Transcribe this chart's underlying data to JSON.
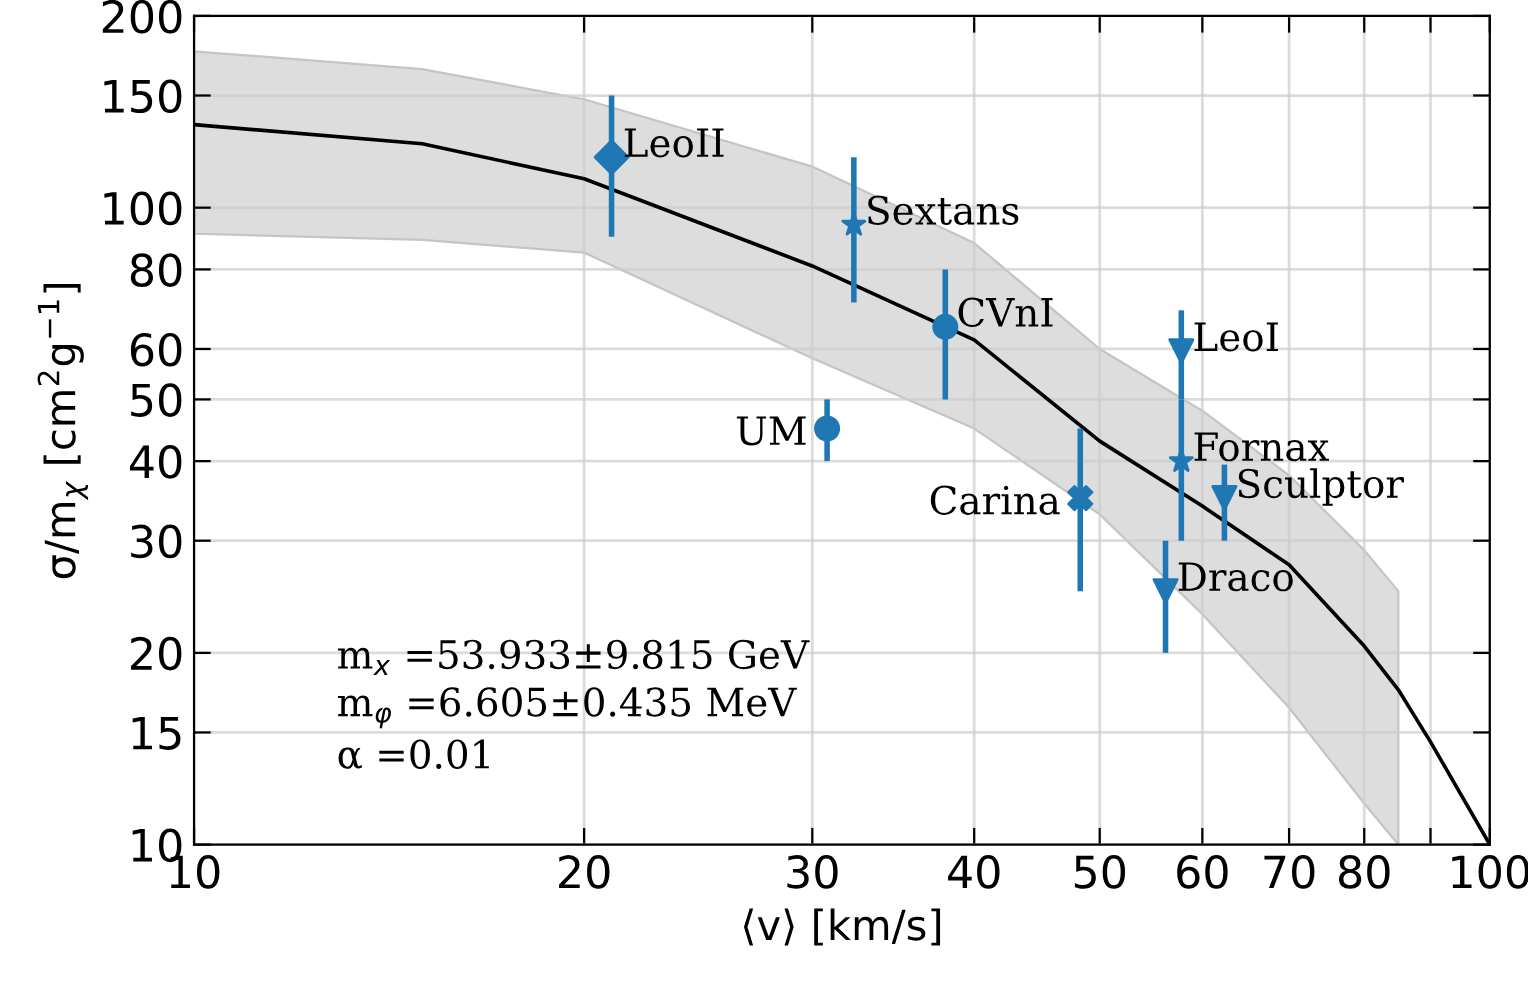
{
  "chart_data": {
    "type": "scatter",
    "log": "xy",
    "grid": true,
    "xlabel": "⟨v⟩ [km/s]",
    "ylabel": "σ/m$_{χ}$ [cm$^{2}$g$^{−1}$]",
    "xlim": [
      10,
      100
    ],
    "ylim": [
      10,
      200
    ],
    "xticks": [
      10,
      20,
      30,
      40,
      50,
      60,
      70,
      80,
      {
        "value": 90,
        "label": null
      },
      100
    ],
    "yticks": [
      10,
      15,
      20,
      30,
      40,
      50,
      60,
      80,
      100,
      150,
      200
    ],
    "series": [
      {
        "type": "line",
        "color": "#000000",
        "marker": "none",
        "line_style": "solid",
        "x": [
          10,
          15,
          20,
          30,
          40,
          50,
          60,
          70,
          80,
          85,
          90,
          100
        ],
        "values": [
          135,
          126,
          111,
          81,
          62,
          43,
          34,
          27.5,
          20.5,
          17.5,
          14.5,
          10
        ],
        "upper": [
          176,
          165,
          148,
          116,
          88,
          60,
          48,
          38,
          29,
          25,
          null,
          null
        ],
        "lower": [
          91,
          89,
          85,
          58,
          45,
          33,
          23,
          16.4,
          11.6,
          10,
          null,
          null
        ]
      },
      {
        "color": "#1f77b4",
        "marker": "diamond",
        "x": [
          21.0
        ],
        "values": [
          120
        ],
        "errors": [
          [
            90,
            150
          ]
        ]
      },
      {
        "color": "#1f77b4",
        "marker": "star",
        "x": [
          32.3
        ],
        "values": [
          94
        ],
        "errors": [
          [
            71,
            120
          ]
        ]
      },
      {
        "color": "#1f77b4",
        "marker": "circle",
        "x": [
          38.0
        ],
        "values": [
          65
        ],
        "errors": [
          [
            50,
            80
          ]
        ]
      },
      {
        "color": "#1f77b4",
        "marker": "circle",
        "x": [
          30.8
        ],
        "values": [
          45
        ],
        "errors": [
          [
            40,
            50
          ]
        ]
      },
      {
        "color": "#1f77b4",
        "marker": "cross",
        "x": [
          48.3
        ],
        "values": [
          35
        ],
        "errors": [
          [
            25,
            45
          ]
        ]
      },
      {
        "color": "#1f77b4",
        "marker": "triangle",
        "x": [
          57.8
        ],
        "values": [
          59.5
        ],
        "errors": [
          [
            50,
            69
          ]
        ]
      },
      {
        "color": "#1f77b4",
        "marker": "star",
        "x": [
          57.8
        ],
        "values": [
          40
        ],
        "errors": [
          [
            30,
            50
          ]
        ]
      },
      {
        "color": "#1f77b4",
        "marker": "triangle",
        "x": [
          62.4
        ],
        "values": [
          35
        ],
        "errors": [
          [
            30,
            39.5
          ]
        ]
      },
      {
        "color": "#1f77b4",
        "marker": "triangle",
        "x": [
          56.2
        ],
        "values": [
          25
        ],
        "errors": [
          [
            20,
            30
          ]
        ]
      }
    ],
    "annotations": [
      {
        "text": "LeoII",
        "x": 21.0,
        "y": 120
      },
      {
        "text": "Sextans",
        "x": 32.3,
        "y": 94
      },
      {
        "text": "CVnI",
        "x": 38.0,
        "y": 65
      },
      {
        "text": "UM",
        "x": 30.8,
        "y": 45
      },
      {
        "text": "Carina",
        "x": 48.3,
        "y": 35
      },
      {
        "text": "LeoI",
        "x": 57.8,
        "y": 59.5
      },
      {
        "text": "Fornax",
        "x": 57.8,
        "y": 40
      },
      {
        "text": "Sculptor",
        "x": 62.4,
        "y": 35
      },
      {
        "text": "Draco",
        "x": 56.2,
        "y": 25
      },
      "m$_{x}$ =53.933±9.815 GeV",
      "m$_{φ}$ =6.605±0.435 MeV",
      "α =0.01"
    ]
  }
}
